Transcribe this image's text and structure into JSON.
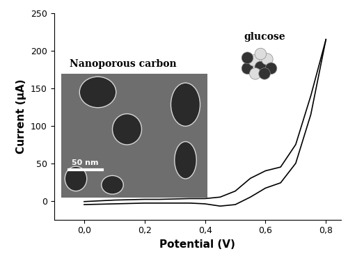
{
  "chart_data": {
    "type": "line",
    "x_label": "Potential (V)",
    "y_label": "Current (µA)",
    "annotations": [
      "Nanoporous carbon",
      "glucose",
      "50 nm"
    ],
    "x": [
      0.0,
      0.05,
      0.1,
      0.15,
      0.2,
      0.25,
      0.3,
      0.35,
      0.4,
      0.45,
      0.5,
      0.55,
      0.6,
      0.65,
      0.7,
      0.75,
      0.8
    ],
    "series": [
      {
        "color": "#000000",
        "values": [
          -1,
          0,
          1,
          1.5,
          2,
          2,
          2.5,
          3,
          3,
          5,
          13,
          30,
          40,
          45,
          75,
          140,
          215
        ]
      },
      {
        "color": "#000000",
        "values": [
          -5,
          -4.5,
          -4,
          -3.5,
          -3,
          -3,
          -3,
          -3,
          -4,
          -7,
          -5,
          5,
          17,
          24,
          50,
          115,
          215
        ]
      }
    ],
    "xlim": [
      -0.1,
      0.85
    ],
    "ylim": [
      -25,
      250
    ],
    "xticks": [
      {
        "value": 0.0,
        "label": "0,0"
      },
      {
        "value": 0.2,
        "label": "0,2"
      },
      {
        "value": 0.4,
        "label": "0,4"
      },
      {
        "value": 0.6,
        "label": "0,6"
      },
      {
        "value": 0.8,
        "label": "0,8"
      }
    ],
    "yticks": [
      0,
      50,
      100,
      150,
      200,
      250
    ],
    "grid": false
  }
}
